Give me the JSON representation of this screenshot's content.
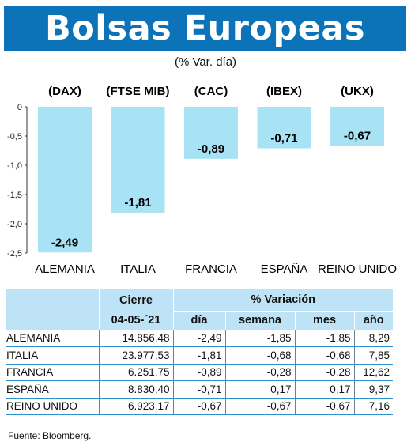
{
  "title": "Bolsas Europeas",
  "subtitle": "(% Var. día)",
  "chart_data": {
    "type": "bar",
    "categories": [
      "ALEMANIA",
      "ITALIA",
      "FRANCIA",
      "ESPAÑA",
      "REINO UNIDO"
    ],
    "indices": [
      "(DAX)",
      "(FTSE MIB)",
      "(CAC)",
      "(IBEX)",
      "(UKX)"
    ],
    "values": [
      -2.49,
      -1.81,
      -0.89,
      -0.71,
      -0.67
    ],
    "value_labels": [
      "-2,49",
      "-1,81",
      "-0,89",
      "-0,71",
      "-0,67"
    ],
    "yticks": [
      "0",
      "-0,5",
      "-1,0",
      "-1,5",
      "-2,0",
      "-2,5"
    ],
    "ytick_values": [
      0,
      -0.5,
      -1.0,
      -1.5,
      -2.0,
      -2.5
    ],
    "ylim": [
      -2.5,
      0
    ],
    "bar_color": "#a8e2f5",
    "grid": false
  },
  "table": {
    "header_cierre": "Cierre",
    "header_variacion": "% Variación",
    "header_date": "04-05-´21",
    "sub_headers": [
      "día",
      "semana",
      "mes",
      "año"
    ],
    "rows": [
      {
        "name": "ALEMANIA",
        "cierre": "14.856,48",
        "dia": "-2,49",
        "semana": "-1,85",
        "mes": "-1,85",
        "anio": "8,29"
      },
      {
        "name": "ITALIA",
        "cierre": "23.977,53",
        "dia": "-1,81",
        "semana": "-0,68",
        "mes": "-0,68",
        "anio": "7,85"
      },
      {
        "name": "FRANCIA",
        "cierre": "6.251,75",
        "dia": "-0,89",
        "semana": "-0,28",
        "mes": "-0,28",
        "anio": "12,62"
      },
      {
        "name": "ESPAÑA",
        "cierre": "8.830,40",
        "dia": "-0,71",
        "semana": "0,17",
        "mes": "0,17",
        "anio": "9,37"
      },
      {
        "name": "REINO UNIDO",
        "cierre": "6.923,17",
        "dia": "-0,67",
        "semana": "-0,67",
        "mes": "-0,67",
        "anio": "7,16"
      }
    ]
  },
  "source": "Fuente: Bloomberg.",
  "colors": {
    "title_bg": "#0c73b8",
    "header_bg": "#bfe3f6",
    "row_rule": "#2b8fd0"
  }
}
